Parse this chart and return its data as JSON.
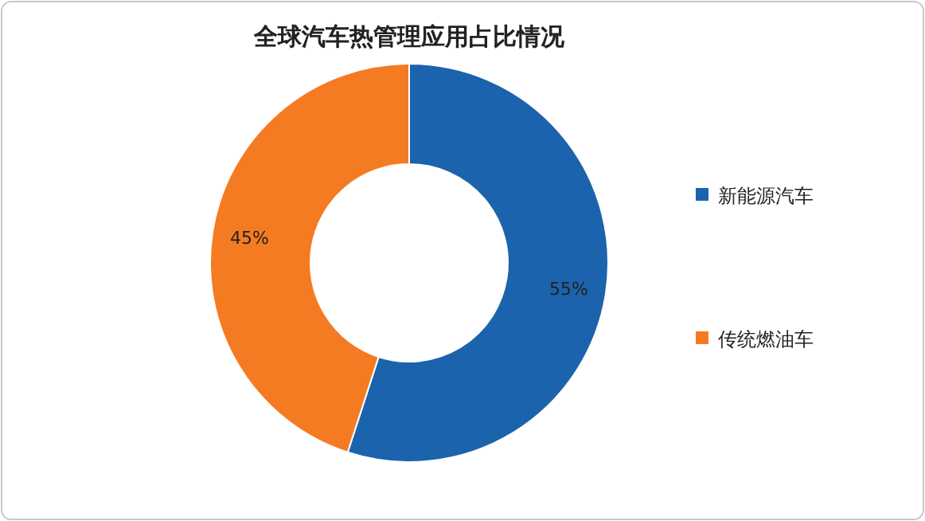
{
  "chart_data": {
    "type": "donut",
    "title": "全球汽车热管理应用占比情况",
    "categories": [
      "新能源汽车",
      "传统燃油车"
    ],
    "values": [
      55,
      45
    ],
    "colors": [
      "#1b63ad",
      "#f57b22"
    ],
    "value_labels": [
      "55%",
      "45%"
    ],
    "legend": "right"
  }
}
